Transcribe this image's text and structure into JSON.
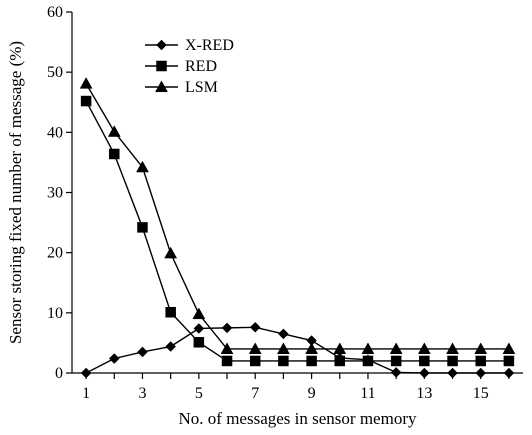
{
  "chart_data": {
    "type": "line",
    "xlabel": "No. of messages in sensor memory",
    "ylabel": "Sensor storing fixed number of message (%)",
    "xlim": [
      0.5,
      16.5
    ],
    "ylim": [
      0,
      60
    ],
    "xticks": [
      1,
      3,
      5,
      7,
      9,
      11,
      13,
      15
    ],
    "yticks": [
      0,
      10,
      20,
      30,
      40,
      50,
      60
    ],
    "grid": false,
    "legend_position": "top-left",
    "x": [
      1,
      2,
      3,
      4,
      5,
      6,
      7,
      8,
      9,
      10,
      11,
      12,
      13,
      14,
      15,
      16
    ],
    "series": [
      {
        "name": "X-RED",
        "marker": "diamond",
        "values": [
          0,
          2.4,
          3.5,
          4.4,
          7.4,
          7.5,
          7.6,
          6.5,
          5.4,
          2.5,
          2.2,
          0.1,
          0.0,
          0.0,
          0.0,
          0.0
        ]
      },
      {
        "name": "RED",
        "marker": "square",
        "values": [
          45.2,
          36.4,
          24.2,
          10.1,
          5.1,
          2.0,
          2.0,
          2.0,
          2.0,
          2.0,
          2.0,
          2.0,
          2.0,
          2.0,
          2.0,
          2.0
        ]
      },
      {
        "name": "LSM",
        "marker": "triangle",
        "values": [
          48.1,
          40.1,
          34.2,
          19.9,
          9.8,
          4.0,
          4.0,
          4.0,
          4.0,
          4.0,
          4.0,
          4.0,
          4.0,
          4.0,
          4.0,
          4.0
        ]
      }
    ]
  }
}
